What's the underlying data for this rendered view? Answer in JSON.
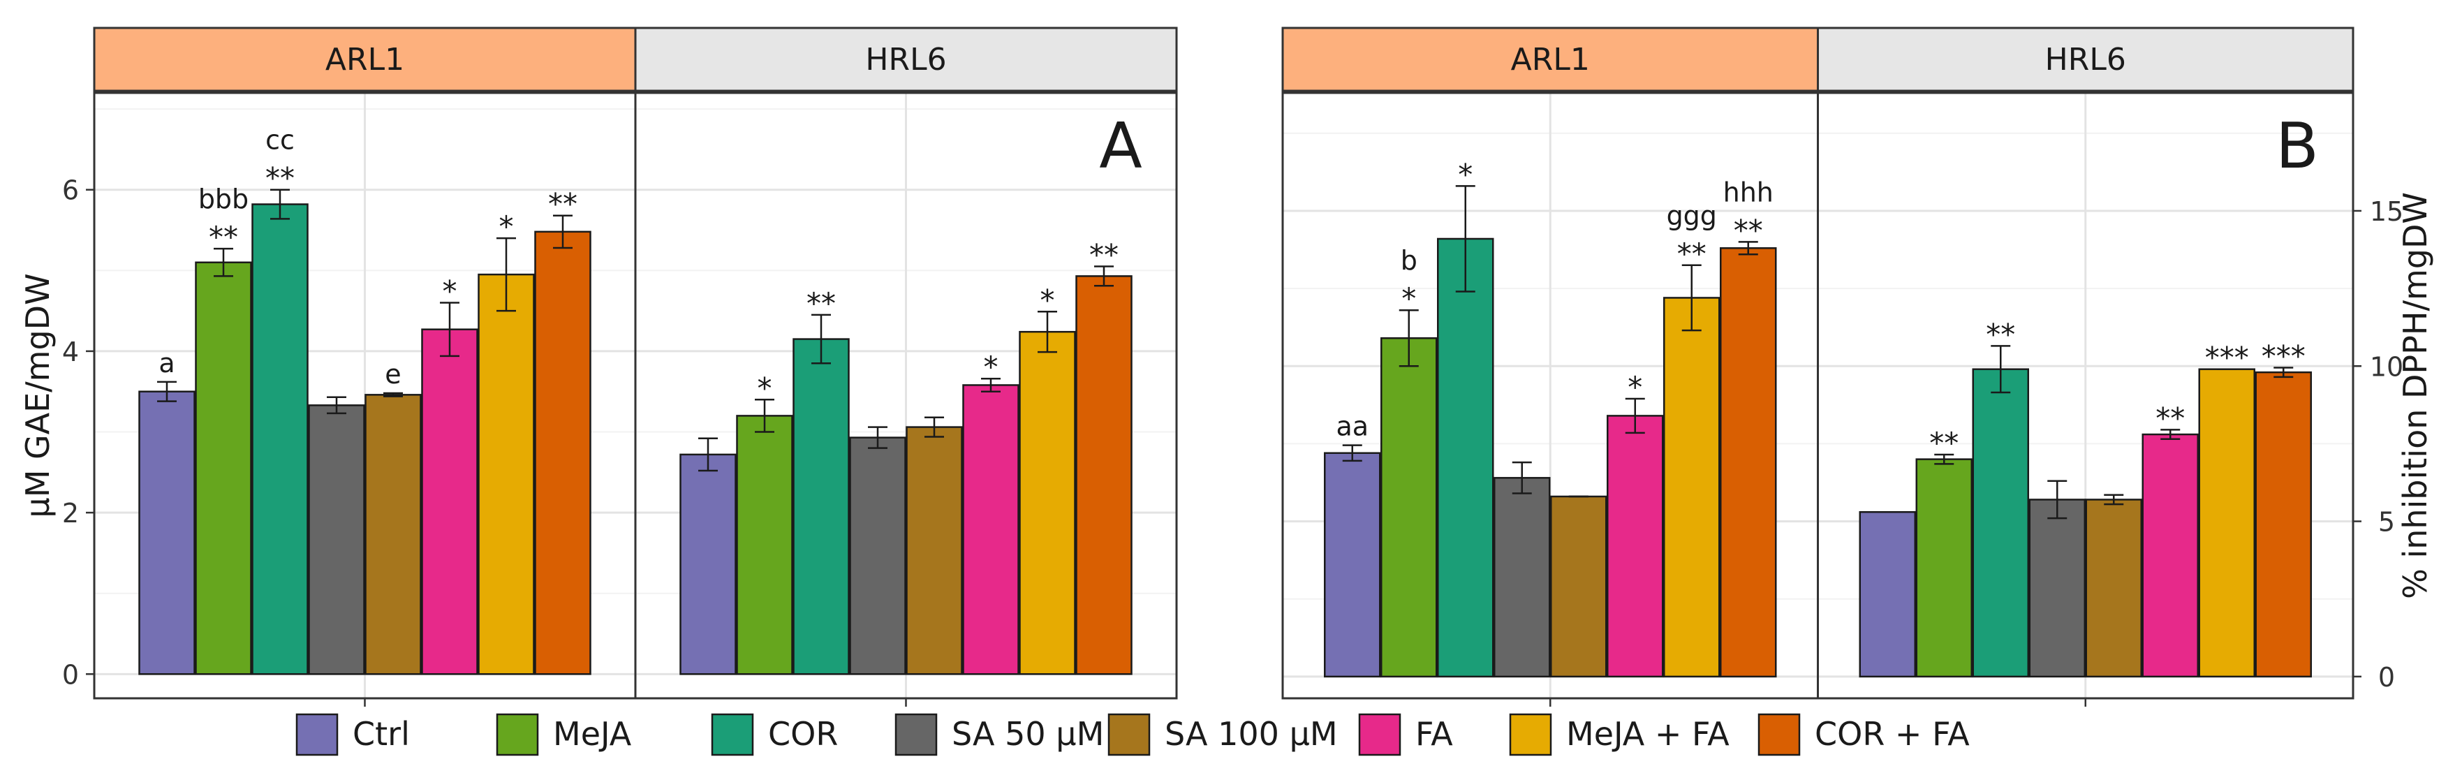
{
  "colors": {
    "Ctrl": "#7570b3",
    "MeJA": "#66a61e",
    "COR": "#1b9e77",
    "SA 50 µM": "#666666",
    "SA 100 µM": "#a6761d",
    "FA": "#e7298a",
    "MeJA + FA": "#e6ab02",
    "COR + FA": "#d95f02",
    "strip_ARL1": "#fdb07d",
    "strip_HRL6": "#e6e6e6"
  },
  "legend": {
    "entries": [
      "Ctrl",
      "MeJA",
      "COR",
      "SA 50 µM",
      "SA 100 µM",
      "FA",
      "MeJA + FA",
      "COR + FA"
    ],
    "position": "bottom"
  },
  "chart_data": [
    {
      "type": "bar",
      "panel_label": "A",
      "ylabel": "µM GAE/mgDW",
      "y_axis_side": "left",
      "ylim": [
        -0.3,
        7.2
      ],
      "yticks": [
        0,
        2,
        4,
        6
      ],
      "grid": true,
      "facets": [
        "ARL1",
        "HRL6"
      ],
      "series_names": [
        "Ctrl",
        "MeJA",
        "COR",
        "SA 50 µM",
        "SA 100 µM",
        "FA",
        "MeJA + FA",
        "COR + FA"
      ],
      "groups": [
        {
          "facet": "ARL1",
          "values": [
            3.5,
            5.1,
            5.82,
            3.33,
            3.46,
            4.27,
            4.95,
            5.48
          ],
          "errors": [
            0.12,
            0.17,
            0.18,
            0.1,
            0.02,
            0.33,
            0.45,
            0.2
          ],
          "stars": [
            "",
            "**",
            "**",
            "",
            "",
            "*",
            "*",
            "**"
          ],
          "letters": [
            "a",
            "bbb",
            "cc",
            "",
            "e",
            "",
            "",
            ""
          ]
        },
        {
          "facet": "HRL6",
          "values": [
            2.72,
            3.2,
            4.15,
            2.93,
            3.06,
            3.58,
            4.24,
            4.93
          ],
          "errors": [
            0.2,
            0.2,
            0.3,
            0.13,
            0.12,
            0.08,
            0.25,
            0.12
          ],
          "stars": [
            "",
            "*",
            "**",
            "",
            "",
            "*",
            "*",
            "**"
          ],
          "letters": [
            "",
            "",
            "",
            "",
            "",
            "",
            "",
            ""
          ]
        }
      ]
    },
    {
      "type": "bar",
      "panel_label": "B",
      "ylabel": "% inhibition DPPH/mgDW",
      "y_axis_side": "right",
      "ylim": [
        -0.7,
        18.8
      ],
      "yticks": [
        0,
        5,
        10,
        15
      ],
      "grid": true,
      "facets": [
        "ARL1",
        "HRL6"
      ],
      "series_names": [
        "Ctrl",
        "MeJA",
        "COR",
        "SA 50 µM",
        "SA 100 µM",
        "FA",
        "MeJA + FA",
        "COR + FA"
      ],
      "groups": [
        {
          "facet": "ARL1",
          "values": [
            7.2,
            10.9,
            14.1,
            6.4,
            5.8,
            8.4,
            12.2,
            13.8
          ],
          "errors": [
            0.25,
            0.9,
            1.7,
            0.5,
            0.0,
            0.55,
            1.05,
            0.2
          ],
          "stars": [
            "",
            "*",
            "*",
            "",
            "",
            "*",
            "**",
            "**"
          ],
          "letters": [
            "aa",
            "b",
            "",
            "",
            "",
            "",
            "ggg",
            "hhh"
          ]
        },
        {
          "facet": "HRL6",
          "values": [
            5.3,
            7.0,
            9.9,
            5.7,
            5.7,
            7.8,
            9.9,
            9.8
          ],
          "errors": [
            0.0,
            0.15,
            0.75,
            0.6,
            0.15,
            0.15,
            0.0,
            0.15
          ],
          "stars": [
            "",
            "**",
            "**",
            "",
            "",
            "**",
            "***",
            "***"
          ],
          "letters": [
            "",
            "",
            "",
            "",
            "",
            "",
            "",
            ""
          ]
        }
      ]
    }
  ]
}
